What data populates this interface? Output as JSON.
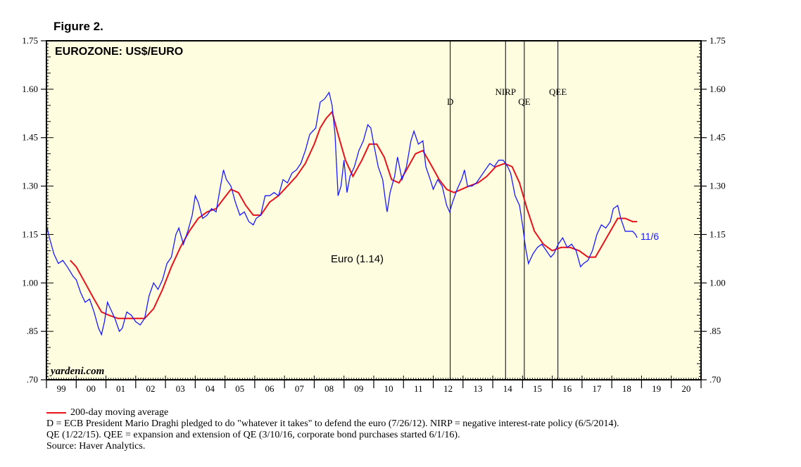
{
  "figure_label": "Figure 2.",
  "chart_data": {
    "type": "line",
    "title": "EUROZONE: US$/EURO",
    "watermark": "yardeni.com",
    "x_axis": {
      "range": [
        1999.0,
        2021.0
      ],
      "ticks": [
        {
          "label": "99",
          "year": 1999
        },
        {
          "label": "00",
          "year": 2000
        },
        {
          "label": "01",
          "year": 2001
        },
        {
          "label": "02",
          "year": 2002
        },
        {
          "label": "03",
          "year": 2003
        },
        {
          "label": "04",
          "year": 2004
        },
        {
          "label": "05",
          "year": 2005
        },
        {
          "label": "06",
          "year": 2006
        },
        {
          "label": "07",
          "year": 2007
        },
        {
          "label": "08",
          "year": 2008
        },
        {
          "label": "09",
          "year": 2009
        },
        {
          "label": "10",
          "year": 2010
        },
        {
          "label": "11",
          "year": 2011
        },
        {
          "label": "12",
          "year": 2012
        },
        {
          "label": "13",
          "year": 2013
        },
        {
          "label": "14",
          "year": 2014
        },
        {
          "label": "15",
          "year": 2015
        },
        {
          "label": "16",
          "year": 2016
        },
        {
          "label": "17",
          "year": 2017
        },
        {
          "label": "18",
          "year": 2018
        },
        {
          "label": "19",
          "year": 2019
        },
        {
          "label": "20",
          "year": 2020
        }
      ]
    },
    "y_axis": {
      "range": [
        0.7,
        1.75
      ],
      "ticks": [
        {
          "label": "1.75",
          "value": 1.75
        },
        {
          "label": "1.60",
          "value": 1.6
        },
        {
          "label": "1.45",
          "value": 1.45
        },
        {
          "label": "1.30",
          "value": 1.3
        },
        {
          "label": "1.15",
          "value": 1.15
        },
        {
          "label": "1.00",
          "value": 1.0
        },
        {
          "label": ".85",
          "value": 0.85
        },
        {
          "label": ".70",
          "value": 0.7
        }
      ]
    },
    "events": [
      {
        "label": "D",
        "date": 2012.57
      },
      {
        "label": "NIRP",
        "date": 2014.43
      },
      {
        "label": "QE",
        "date": 2015.06
      },
      {
        "label": "QEE",
        "date": 2016.19
      }
    ],
    "series": [
      {
        "name": "Euro (1.14)",
        "color": "#1a1aff",
        "points": [
          [
            1999.0,
            1.18
          ],
          [
            1999.1,
            1.14
          ],
          [
            1999.25,
            1.09
          ],
          [
            1999.4,
            1.06
          ],
          [
            1999.55,
            1.07
          ],
          [
            1999.7,
            1.05
          ],
          [
            1999.9,
            1.02
          ],
          [
            2000.0,
            1.01
          ],
          [
            2000.15,
            0.97
          ],
          [
            2000.3,
            0.94
          ],
          [
            2000.45,
            0.95
          ],
          [
            2000.6,
            0.91
          ],
          [
            2000.75,
            0.86
          ],
          [
            2000.85,
            0.84
          ],
          [
            2000.95,
            0.88
          ],
          [
            2001.05,
            0.94
          ],
          [
            2001.15,
            0.92
          ],
          [
            2001.3,
            0.89
          ],
          [
            2001.45,
            0.85
          ],
          [
            2001.55,
            0.86
          ],
          [
            2001.7,
            0.91
          ],
          [
            2001.85,
            0.9
          ],
          [
            2002.0,
            0.88
          ],
          [
            2002.15,
            0.87
          ],
          [
            2002.3,
            0.89
          ],
          [
            2002.45,
            0.96
          ],
          [
            2002.6,
            1.0
          ],
          [
            2002.75,
            0.98
          ],
          [
            2002.9,
            1.01
          ],
          [
            2003.05,
            1.06
          ],
          [
            2003.2,
            1.08
          ],
          [
            2003.35,
            1.15
          ],
          [
            2003.45,
            1.17
          ],
          [
            2003.6,
            1.12
          ],
          [
            2003.75,
            1.16
          ],
          [
            2003.9,
            1.21
          ],
          [
            2004.0,
            1.27
          ],
          [
            2004.1,
            1.25
          ],
          [
            2004.25,
            1.2
          ],
          [
            2004.4,
            1.21
          ],
          [
            2004.55,
            1.23
          ],
          [
            2004.7,
            1.22
          ],
          [
            2004.85,
            1.3
          ],
          [
            2004.95,
            1.35
          ],
          [
            2005.05,
            1.32
          ],
          [
            2005.2,
            1.3
          ],
          [
            2005.35,
            1.25
          ],
          [
            2005.5,
            1.21
          ],
          [
            2005.65,
            1.22
          ],
          [
            2005.8,
            1.19
          ],
          [
            2005.95,
            1.18
          ],
          [
            2006.05,
            1.2
          ],
          [
            2006.2,
            1.21
          ],
          [
            2006.35,
            1.27
          ],
          [
            2006.5,
            1.27
          ],
          [
            2006.65,
            1.28
          ],
          [
            2006.8,
            1.27
          ],
          [
            2006.95,
            1.32
          ],
          [
            2007.1,
            1.31
          ],
          [
            2007.25,
            1.34
          ],
          [
            2007.4,
            1.35
          ],
          [
            2007.55,
            1.37
          ],
          [
            2007.7,
            1.41
          ],
          [
            2007.85,
            1.46
          ],
          [
            2007.95,
            1.47
          ],
          [
            2008.05,
            1.48
          ],
          [
            2008.2,
            1.56
          ],
          [
            2008.35,
            1.57
          ],
          [
            2008.5,
            1.59
          ],
          [
            2008.6,
            1.55
          ],
          [
            2008.7,
            1.46
          ],
          [
            2008.8,
            1.27
          ],
          [
            2008.9,
            1.3
          ],
          [
            2009.0,
            1.38
          ],
          [
            2009.1,
            1.28
          ],
          [
            2009.2,
            1.33
          ],
          [
            2009.35,
            1.36
          ],
          [
            2009.5,
            1.41
          ],
          [
            2009.65,
            1.44
          ],
          [
            2009.8,
            1.49
          ],
          [
            2009.9,
            1.48
          ],
          [
            2010.0,
            1.43
          ],
          [
            2010.15,
            1.36
          ],
          [
            2010.3,
            1.32
          ],
          [
            2010.4,
            1.25
          ],
          [
            2010.45,
            1.22
          ],
          [
            2010.55,
            1.28
          ],
          [
            2010.7,
            1.33
          ],
          [
            2010.8,
            1.39
          ],
          [
            2010.95,
            1.32
          ],
          [
            2011.1,
            1.36
          ],
          [
            2011.25,
            1.44
          ],
          [
            2011.35,
            1.47
          ],
          [
            2011.5,
            1.43
          ],
          [
            2011.65,
            1.44
          ],
          [
            2011.75,
            1.36
          ],
          [
            2011.9,
            1.32
          ],
          [
            2012.0,
            1.29
          ],
          [
            2012.15,
            1.32
          ],
          [
            2012.3,
            1.3
          ],
          [
            2012.45,
            1.24
          ],
          [
            2012.55,
            1.22
          ],
          [
            2012.65,
            1.25
          ],
          [
            2012.8,
            1.29
          ],
          [
            2012.95,
            1.32
          ],
          [
            2013.05,
            1.35
          ],
          [
            2013.15,
            1.3
          ],
          [
            2013.3,
            1.3
          ],
          [
            2013.45,
            1.31
          ],
          [
            2013.6,
            1.33
          ],
          [
            2013.75,
            1.35
          ],
          [
            2013.9,
            1.37
          ],
          [
            2014.05,
            1.36
          ],
          [
            2014.2,
            1.38
          ],
          [
            2014.35,
            1.38
          ],
          [
            2014.5,
            1.36
          ],
          [
            2014.6,
            1.34
          ],
          [
            2014.75,
            1.27
          ],
          [
            2014.9,
            1.24
          ],
          [
            2015.0,
            1.18
          ],
          [
            2015.1,
            1.11
          ],
          [
            2015.2,
            1.06
          ],
          [
            2015.35,
            1.09
          ],
          [
            2015.5,
            1.11
          ],
          [
            2015.65,
            1.12
          ],
          [
            2015.8,
            1.1
          ],
          [
            2015.95,
            1.08
          ],
          [
            2016.05,
            1.09
          ],
          [
            2016.2,
            1.12
          ],
          [
            2016.35,
            1.14
          ],
          [
            2016.5,
            1.11
          ],
          [
            2016.65,
            1.12
          ],
          [
            2016.8,
            1.1
          ],
          [
            2016.95,
            1.05
          ],
          [
            2017.05,
            1.06
          ],
          [
            2017.2,
            1.07
          ],
          [
            2017.35,
            1.1
          ],
          [
            2017.5,
            1.15
          ],
          [
            2017.65,
            1.18
          ],
          [
            2017.8,
            1.17
          ],
          [
            2017.95,
            1.19
          ],
          [
            2018.05,
            1.23
          ],
          [
            2018.2,
            1.24
          ],
          [
            2018.3,
            1.2
          ],
          [
            2018.45,
            1.16
          ],
          [
            2018.6,
            1.16
          ],
          [
            2018.7,
            1.16
          ],
          [
            2018.8,
            1.15
          ],
          [
            2018.85,
            1.14
          ]
        ]
      },
      {
        "name": "200-day moving average",
        "color": "#e8121d",
        "points": [
          [
            1999.8,
            1.07
          ],
          [
            2000.0,
            1.05
          ],
          [
            2000.3,
            1.0
          ],
          [
            2000.6,
            0.95
          ],
          [
            2000.85,
            0.91
          ],
          [
            2001.1,
            0.9
          ],
          [
            2001.4,
            0.89
          ],
          [
            2001.7,
            0.89
          ],
          [
            2002.0,
            0.89
          ],
          [
            2002.3,
            0.89
          ],
          [
            2002.6,
            0.92
          ],
          [
            2002.9,
            0.98
          ],
          [
            2003.2,
            1.05
          ],
          [
            2003.5,
            1.11
          ],
          [
            2003.8,
            1.16
          ],
          [
            2004.1,
            1.2
          ],
          [
            2004.4,
            1.22
          ],
          [
            2004.7,
            1.23
          ],
          [
            2004.95,
            1.26
          ],
          [
            2005.2,
            1.29
          ],
          [
            2005.45,
            1.28
          ],
          [
            2005.7,
            1.24
          ],
          [
            2005.95,
            1.21
          ],
          [
            2006.2,
            1.21
          ],
          [
            2006.5,
            1.25
          ],
          [
            2006.8,
            1.27
          ],
          [
            2007.1,
            1.3
          ],
          [
            2007.4,
            1.33
          ],
          [
            2007.7,
            1.37
          ],
          [
            2008.0,
            1.43
          ],
          [
            2008.2,
            1.48
          ],
          [
            2008.4,
            1.51
          ],
          [
            2008.6,
            1.53
          ],
          [
            2008.8,
            1.46
          ],
          [
            2009.05,
            1.38
          ],
          [
            2009.3,
            1.33
          ],
          [
            2009.6,
            1.38
          ],
          [
            2009.85,
            1.43
          ],
          [
            2010.1,
            1.43
          ],
          [
            2010.35,
            1.39
          ],
          [
            2010.6,
            1.32
          ],
          [
            2010.85,
            1.31
          ],
          [
            2011.1,
            1.35
          ],
          [
            2011.4,
            1.4
          ],
          [
            2011.65,
            1.41
          ],
          [
            2011.9,
            1.37
          ],
          [
            2012.2,
            1.32
          ],
          [
            2012.45,
            1.29
          ],
          [
            2012.7,
            1.28
          ],
          [
            2012.95,
            1.29
          ],
          [
            2013.2,
            1.3
          ],
          [
            2013.5,
            1.31
          ],
          [
            2013.8,
            1.33
          ],
          [
            2014.1,
            1.36
          ],
          [
            2014.4,
            1.37
          ],
          [
            2014.65,
            1.36
          ],
          [
            2014.9,
            1.31
          ],
          [
            2015.15,
            1.23
          ],
          [
            2015.4,
            1.16
          ],
          [
            2015.7,
            1.12
          ],
          [
            2016.0,
            1.1
          ],
          [
            2016.3,
            1.11
          ],
          [
            2016.6,
            1.11
          ],
          [
            2016.9,
            1.1
          ],
          [
            2017.2,
            1.08
          ],
          [
            2017.45,
            1.08
          ],
          [
            2017.7,
            1.12
          ],
          [
            2017.95,
            1.16
          ],
          [
            2018.2,
            1.2
          ],
          [
            2018.45,
            1.2
          ],
          [
            2018.7,
            1.19
          ],
          [
            2018.85,
            1.19
          ]
        ]
      }
    ],
    "annotations": [
      {
        "text": "11/6",
        "color": "#1a1aff"
      }
    ]
  },
  "footnotes": {
    "legend_label": "200-day moving average",
    "line1": "D = ECB President Mario Draghi pledged to do \"whatever it takes\" to defend the euro (7/26/12). NIRP = negative interest-rate policy (6/5/2014).",
    "line2": "QE (1/22/15). QEE = expansion and extension of QE (3/10/16, corporate bond purchases started 6/1/16).",
    "line3": "Source: Haver Analytics."
  }
}
